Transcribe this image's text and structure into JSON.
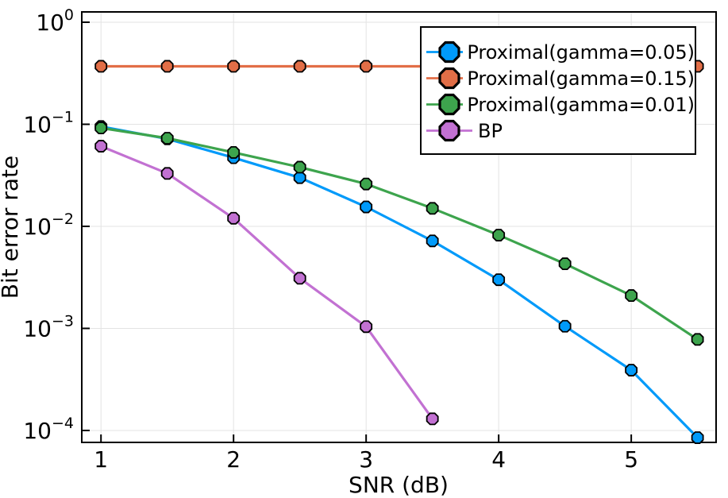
{
  "figure": {
    "background": "#ffffff"
  },
  "chart_data": {
    "type": "line",
    "title": "",
    "xlabel": "SNR (dB)",
    "ylabel": "Bit error rate",
    "grid": true,
    "legend_position": "top-right",
    "frame_color": "#000000",
    "grid_color": "#e3e3e3",
    "marker": "octagon",
    "marker_stroke": "#000000",
    "x_axis": {
      "scale": "linear",
      "ticks": [
        1,
        2,
        3,
        4,
        5
      ],
      "lim": [
        0.855,
        5.64
      ]
    },
    "y_axis": {
      "scale": "log10",
      "tick_exponents": [
        0,
        -1,
        -2,
        -3,
        -4
      ],
      "lim_log10": [
        -4.117,
        0.101
      ]
    },
    "series": [
      {
        "name": "Proximal(gamma=0.05)",
        "color": "#009AFA",
        "x": [
          1,
          1.5,
          2,
          2.5,
          3,
          3.5,
          4,
          4.5,
          5,
          5.5
        ],
        "y": [
          0.095,
          0.072,
          0.047,
          0.03,
          0.0155,
          0.0072,
          0.003,
          0.00105,
          0.00039,
          8.5e-05
        ]
      },
      {
        "name": "Proximal(gamma=0.15)",
        "color": "#E26E47",
        "x": [
          1,
          1.5,
          2,
          2.5,
          3,
          3.5,
          4,
          4.5,
          5,
          5.5
        ],
        "y": [
          0.37,
          0.37,
          0.37,
          0.37,
          0.37,
          0.37,
          0.37,
          0.37,
          0.37,
          0.37
        ]
      },
      {
        "name": "Proximal(gamma=0.01)",
        "color": "#3DA44D",
        "x": [
          1,
          1.5,
          2,
          2.5,
          3,
          3.5,
          4,
          4.5,
          5,
          5.5
        ],
        "y": [
          0.092,
          0.073,
          0.053,
          0.038,
          0.026,
          0.015,
          0.0082,
          0.0043,
          0.0021,
          0.00078
        ]
      },
      {
        "name": "BP",
        "color": "#C271D2",
        "x": [
          1,
          1.5,
          2,
          2.5,
          3,
          3.5
        ],
        "y": [
          0.061,
          0.033,
          0.012,
          0.0031,
          0.00104,
          0.00013
        ]
      }
    ]
  }
}
